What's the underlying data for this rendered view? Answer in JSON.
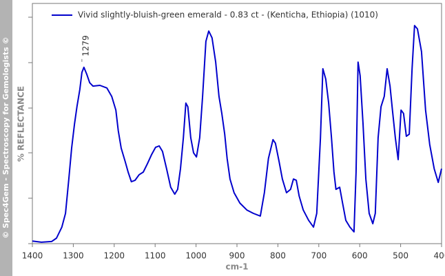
{
  "chart_data": {
    "type": "line",
    "watermark": "© Spec4Gem - Spectroscopy for Gemologists ©",
    "y_label": "% REFLECTANCE",
    "x_label": "cm-1",
    "xlim": [
      1400,
      400
    ],
    "xticks": [
      1400,
      1300,
      1200,
      1100,
      1000,
      900,
      800,
      700,
      600,
      500,
      400
    ],
    "ylim": [
      0,
      100
    ],
    "legend": "top-left",
    "x": [
      1400,
      1378,
      1353,
      1341,
      1328,
      1319,
      1311,
      1304,
      1297,
      1291,
      1284,
      1279,
      1274,
      1267,
      1260,
      1252,
      1235,
      1218,
      1206,
      1196,
      1190,
      1183,
      1173,
      1166,
      1158,
      1149,
      1139,
      1129,
      1119,
      1109,
      1099,
      1090,
      1082,
      1072,
      1062,
      1052,
      1045,
      1038,
      1031,
      1025,
      1020,
      1013,
      1006,
      999,
      991,
      984,
      976,
      969,
      961,
      952,
      944,
      937,
      930,
      924,
      917,
      907,
      893,
      876,
      860,
      843,
      833,
      823,
      812,
      806,
      797,
      789,
      779,
      769,
      762,
      755,
      748,
      738,
      725,
      713,
      705,
      696,
      690,
      683,
      676,
      669,
      663,
      658,
      649,
      642,
      634,
      624,
      614,
      609,
      604,
      599,
      592,
      585,
      577,
      568,
      562,
      555,
      548,
      540,
      533,
      526,
      520,
      513,
      506,
      499,
      493,
      486,
      479,
      472,
      466,
      459,
      449,
      439,
      429,
      418,
      408,
      400
    ],
    "series": [
      {
        "name": "Vivid slightly-bluish-green emerald - 0.83 ct - (Kenticha, Ethiopia) (1010)",
        "color": "#0000cc",
        "values": [
          1.1,
          0.6,
          0.9,
          2.3,
          6.9,
          12.6,
          26.9,
          39.8,
          49.9,
          57.0,
          64.2,
          71.3,
          73.4,
          70.5,
          67.0,
          65.6,
          65.9,
          64.8,
          61.3,
          55.6,
          47.0,
          39.8,
          34.1,
          29.8,
          25.8,
          26.4,
          28.7,
          29.8,
          33.2,
          37.0,
          40.1,
          40.7,
          38.4,
          31.2,
          23.5,
          20.6,
          22.6,
          31.2,
          44.1,
          58.5,
          57.0,
          44.1,
          37.8,
          36.1,
          44.1,
          61.3,
          84.2,
          88.5,
          85.7,
          75.6,
          61.3,
          54.2,
          45.6,
          35.5,
          26.9,
          21.2,
          16.9,
          14.0,
          12.6,
          11.5,
          21.2,
          35.5,
          43.3,
          41.8,
          34.1,
          26.9,
          21.2,
          22.6,
          26.9,
          26.4,
          19.8,
          14.0,
          9.7,
          6.9,
          12.6,
          44.1,
          72.8,
          68.5,
          58.5,
          44.1,
          29.8,
          22.6,
          23.5,
          16.9,
          9.7,
          6.9,
          4.9,
          29.8,
          75.6,
          69.9,
          49.9,
          26.9,
          12.6,
          8.3,
          12.6,
          44.1,
          57.0,
          61.3,
          72.8,
          65.6,
          55.6,
          44.1,
          35.0,
          55.6,
          54.2,
          44.7,
          45.6,
          72.8,
          90.8,
          89.4,
          79.9,
          55.6,
          41.3,
          31.2,
          25.5,
          31.2
        ]
      }
    ],
    "annotations": [
      {
        "label": "1279",
        "x": 1279,
        "y": 73.4
      }
    ]
  }
}
